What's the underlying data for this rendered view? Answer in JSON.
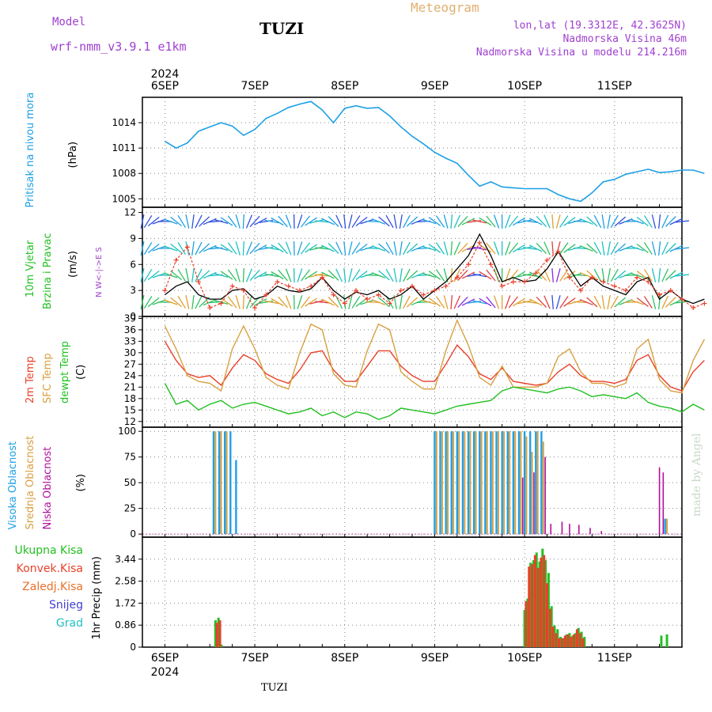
{
  "header": {
    "model_label": "Model",
    "model_name": "wrf-nmm_v3.9.1 e1km",
    "station": "TUZI",
    "meteogram": "Meteogram",
    "lonlat": "lon,lat (19.3312E, 42.3625N)",
    "elev": "Nadmorska Visina 46m",
    "elev_model": "Nadmorska Visina u modelu 214.216m",
    "credit": "made by Angel",
    "footer": "TUZI"
  },
  "colors": {
    "pressure": "#1ea0e6",
    "wind_mean": "#000000",
    "wind_gust": "#e8402a",
    "t2m": "#e8402a",
    "sfc": "#d8a040",
    "dewpt": "#22c022",
    "cloud_high": "#1ea0e6",
    "cloud_mid": "#d8a040",
    "cloud_low": "#b0109a",
    "precip_total": "#22c022",
    "precip_conv": "#e8402a",
    "precip_frz": "#e8702a",
    "precip_snow": "#4040d0",
    "precip_hail": "#22c0c0"
  },
  "chart_data": [
    {
      "type": "line",
      "title": "",
      "ylabel_lines": [
        "Pritisak na nivou mora"
      ],
      "units": "(hPa)",
      "yticks": [
        1005,
        1008,
        1011,
        1014
      ],
      "ylim": [
        1004,
        1017
      ],
      "x_dates_top": [
        "6SEP",
        "7SEP",
        "8SEP",
        "9SEP",
        "10SEP",
        "11SEP"
      ],
      "x_year_top": "2024",
      "x": [
        0,
        3,
        6,
        9,
        12,
        15,
        18,
        21,
        24,
        27,
        30,
        33,
        36,
        39,
        42,
        45,
        48,
        51,
        54,
        57,
        60,
        63,
        66,
        69,
        72,
        75,
        78,
        81,
        84,
        87,
        90,
        93,
        96,
        99,
        102,
        105,
        108,
        111,
        114,
        117,
        120,
        123,
        126,
        129,
        132,
        135,
        138,
        141,
        144
      ],
      "series": [
        {
          "name": "pressure",
          "color_key": "pressure",
          "values": [
            1011.8,
            1011.0,
            1011.6,
            1013.0,
            1013.5,
            1014.0,
            1013.6,
            1012.5,
            1013.2,
            1014.5,
            1015.1,
            1015.8,
            1016.2,
            1016.5,
            1015.5,
            1014.0,
            1015.7,
            1016.0,
            1015.7,
            1015.8,
            1014.8,
            1013.5,
            1012.4,
            1011.5,
            1010.5,
            1009.8,
            1009.2,
            1007.8,
            1006.5,
            1007.0,
            1006.4,
            1006.3,
            1006.2,
            1006.2,
            1006.2,
            1005.5,
            1005.0,
            1004.7,
            1005.7,
            1007.0,
            1007.3,
            1007.9,
            1008.2,
            1008.5,
            1008.1,
            1008.2,
            1008.4,
            1008.4,
            1008.0
          ]
        }
      ]
    },
    {
      "type": "line",
      "ylabel_lines": [
        "10m Vjetar",
        "Brzina i Pravac"
      ],
      "units": "(m/s)",
      "yticks": [
        0,
        3,
        6,
        9,
        12
      ],
      "ylim": [
        0,
        12.6
      ],
      "compass": "N  W<-|->E  S",
      "x": [
        0,
        3,
        6,
        9,
        12,
        15,
        18,
        21,
        24,
        27,
        30,
        33,
        36,
        39,
        42,
        45,
        48,
        51,
        54,
        57,
        60,
        63,
        66,
        69,
        72,
        75,
        78,
        81,
        84,
        87,
        90,
        93,
        96,
        99,
        102,
        105,
        108,
        111,
        114,
        117,
        120,
        123,
        126,
        129,
        132,
        135,
        138,
        141,
        144
      ],
      "series": [
        {
          "name": "mean",
          "color_key": "wind_mean",
          "values": [
            2.5,
            3.5,
            4.0,
            2.5,
            2.0,
            2.0,
            3.0,
            3.2,
            2.0,
            2.4,
            3.5,
            3.0,
            2.8,
            3.2,
            4.5,
            3.0,
            2.0,
            2.8,
            2.5,
            3.0,
            2.0,
            2.5,
            3.5,
            2.0,
            3.0,
            4.0,
            5.5,
            7.0,
            9.5,
            7.0,
            4.0,
            4.5,
            4.0,
            4.2,
            5.5,
            7.5,
            5.5,
            3.5,
            4.5,
            3.5,
            3.0,
            2.5,
            4.0,
            4.5,
            2.0,
            3.0,
            2.0,
            1.5,
            2.0
          ]
        },
        {
          "name": "gust",
          "color_key": "wind_gust",
          "values": [
            3.0,
            6.5,
            8.0,
            4.0,
            1.0,
            1.5,
            3.5,
            3.0,
            1.0,
            2.5,
            4.0,
            3.5,
            3.0,
            3.5,
            4.5,
            2.5,
            1.5,
            3.0,
            2.0,
            2.5,
            1.5,
            3.0,
            3.5,
            2.5,
            3.0,
            3.5,
            4.5,
            6.0,
            8.5,
            6.0,
            3.5,
            4.0,
            4.0,
            5.0,
            6.5,
            7.5,
            4.5,
            3.0,
            4.5,
            4.0,
            3.5,
            3.0,
            4.5,
            4.0,
            2.5,
            3.0,
            2.0,
            1.0,
            1.5
          ]
        }
      ]
    },
    {
      "type": "line",
      "ylabel_lines": [
        "2m Temp",
        "SFC Temp",
        "dewpt Temp"
      ],
      "units": "(C)",
      "yticks": [
        12,
        15,
        18,
        21,
        24,
        27,
        30,
        33,
        36,
        39
      ],
      "ylim": [
        10.5,
        39.5
      ],
      "x": [
        0,
        3,
        6,
        9,
        12,
        15,
        18,
        21,
        24,
        27,
        30,
        33,
        36,
        39,
        42,
        45,
        48,
        51,
        54,
        57,
        60,
        63,
        66,
        69,
        72,
        75,
        78,
        81,
        84,
        87,
        90,
        93,
        96,
        99,
        102,
        105,
        108,
        111,
        114,
        117,
        120,
        123,
        126,
        129,
        132,
        135,
        138,
        141,
        144
      ],
      "series": [
        {
          "name": "2m Temp",
          "color_key": "t2m",
          "values": [
            33.0,
            28.0,
            24.5,
            23.5,
            24.0,
            21.5,
            26.0,
            29.5,
            28.0,
            24.5,
            23.0,
            22.0,
            25.5,
            30.0,
            30.5,
            25.5,
            22.5,
            22.5,
            26.5,
            30.5,
            30.5,
            26.5,
            24.0,
            22.5,
            22.5,
            27.0,
            32.0,
            29.0,
            24.5,
            23.0,
            26.0,
            22.5,
            22.0,
            21.5,
            22.0,
            25.0,
            27.0,
            24.0,
            22.5,
            22.5,
            22.0,
            23.0,
            28.0,
            29.5,
            24.0,
            21.0,
            20.0,
            25.0,
            28.0
          ]
        },
        {
          "name": "SFC Temp",
          "color_key": "sfc",
          "values": [
            37.0,
            31.0,
            24.0,
            22.5,
            22.0,
            20.0,
            31.0,
            37.0,
            31.0,
            23.5,
            21.5,
            20.5,
            30.0,
            37.5,
            36.0,
            24.5,
            21.5,
            21.0,
            30.5,
            37.5,
            36.0,
            25.0,
            22.5,
            20.5,
            20.5,
            30.5,
            38.5,
            32.0,
            23.5,
            21.5,
            26.5,
            21.0,
            21.0,
            21.0,
            22.0,
            29.0,
            31.0,
            25.0,
            22.0,
            22.0,
            21.0,
            22.0,
            31.0,
            33.5,
            23.0,
            20.0,
            19.5,
            28.0,
            33.5
          ]
        },
        {
          "name": "dewpt Temp",
          "color_key": "dewpt",
          "values": [
            22.0,
            16.5,
            17.5,
            15.0,
            16.5,
            17.5,
            15.5,
            16.5,
            17.0,
            16.0,
            15.0,
            14.0,
            14.5,
            15.5,
            13.5,
            14.5,
            13.0,
            14.5,
            14.0,
            12.5,
            13.5,
            15.5,
            15.0,
            14.5,
            14.0,
            15.0,
            16.0,
            16.5,
            17.0,
            17.5,
            20.0,
            21.0,
            20.5,
            20.0,
            19.5,
            20.5,
            21.0,
            20.0,
            18.5,
            19.0,
            18.5,
            18.0,
            19.5,
            17.0,
            16.0,
            15.5,
            14.5,
            16.5,
            15.0
          ]
        }
      ]
    },
    {
      "type": "bar",
      "ylabel_lines": [
        "Visoka Oblacnost",
        "Srednja Oblacnost",
        "Niska Oblacnost"
      ],
      "units": "(%)",
      "yticks": [
        0,
        25,
        50,
        75,
        100
      ],
      "ylim": [
        -3,
        104
      ],
      "series": [
        {
          "name": "Visoka Oblacnost",
          "color_key": "cloud_high",
          "x": [
            13.0,
            14.5,
            16.0,
            17.5,
            19.0,
            72.0,
            73.5,
            75.0,
            76.5,
            78.0,
            79.5,
            81.0,
            82.5,
            84.0,
            85.5,
            87.0,
            88.5,
            90.0,
            91.5,
            93.0,
            94.5,
            96.0,
            97.5,
            99.0,
            100.5,
            133.5
          ],
          "values": [
            100,
            100,
            100,
            100,
            72,
            100,
            100,
            100,
            100,
            100,
            100,
            100,
            100,
            100,
            100,
            100,
            100,
            100,
            100,
            100,
            100,
            100,
            100,
            100,
            100,
            15
          ]
        },
        {
          "name": "Srednja Oblacnost",
          "color_key": "cloud_mid",
          "x": [
            13.5,
            15.0,
            16.5,
            72.5,
            74.0,
            75.5,
            77.0,
            78.5,
            80.0,
            81.5,
            83.0,
            84.5,
            86.0,
            87.5,
            89.0,
            90.5,
            92.0,
            93.5,
            95.0,
            96.5,
            98.0,
            99.5,
            101.0,
            134.0
          ],
          "values": [
            100,
            100,
            100,
            100,
            100,
            100,
            100,
            100,
            100,
            100,
            100,
            100,
            100,
            100,
            100,
            100,
            100,
            100,
            100,
            95,
            80,
            100,
            90,
            15
          ]
        },
        {
          "name": "Niska Oblacnost",
          "color_key": "cloud_low",
          "x": [
            95.5,
            98.5,
            101.5,
            103.0,
            106.0,
            108.0,
            110.5,
            113.5,
            116.5,
            132.0,
            133.0
          ],
          "values": [
            55,
            60,
            75,
            10,
            12,
            10,
            9,
            6,
            3,
            65,
            60
          ]
        }
      ]
    },
    {
      "type": "bar",
      "ylabel": "1hr Precip (mm)",
      "legend": [
        "Ukupna Kisa",
        "Konvek.Kisa",
        "Zaledj.Kisa",
        "Snijeg",
        "Grad"
      ],
      "legend_color_keys": [
        "precip_total",
        "precip_conv",
        "precip_frz",
        "precip_snow",
        "precip_hail"
      ],
      "yticks": [
        0,
        0.86,
        1.72,
        2.58,
        3.44
      ],
      "ylim": [
        0,
        4.3
      ],
      "x_dates_bottom": [
        "6SEP",
        "7SEP",
        "8SEP",
        "9SEP",
        "10SEP",
        "11SEP"
      ],
      "x_year_bottom": "2024",
      "series": [
        {
          "name": "Ukupna Kisa",
          "color_key": "precip_total",
          "x": [
            13.5,
            14.3,
            15.1,
            96.0,
            96.8,
            97.6,
            98.4,
            99.2,
            100.0,
            100.8,
            101.6,
            102.4,
            103.2,
            104.0,
            104.8,
            105.6,
            106.4,
            107.2,
            108.0,
            108.8,
            109.6,
            110.4,
            111.2,
            112.0,
            132.5,
            134.0
          ],
          "values": [
            1.05,
            1.15,
            0.1,
            1.45,
            1.9,
            3.3,
            3.4,
            3.7,
            3.35,
            3.85,
            3.4,
            2.9,
            1.6,
            0.85,
            0.7,
            0.4,
            0.35,
            0.5,
            0.55,
            0.45,
            0.55,
            0.75,
            0.6,
            0.4,
            0.45,
            0.5
          ]
        },
        {
          "name": "Konvek.Kisa",
          "color_key": "precip_conv",
          "x": [
            13.9,
            14.7,
            96.4,
            97.2,
            98.0,
            98.8,
            99.6,
            100.4,
            101.2,
            102.0,
            102.8,
            103.6,
            104.4,
            105.2,
            106.0,
            106.8,
            107.6,
            108.4,
            109.2,
            110.0,
            110.8,
            111.6
          ],
          "values": [
            0.95,
            1.05,
            1.8,
            3.15,
            3.25,
            3.6,
            3.1,
            3.5,
            3.6,
            2.5,
            1.5,
            0.8,
            0.55,
            0.35,
            0.35,
            0.45,
            0.5,
            0.4,
            0.5,
            0.7,
            0.55,
            0.35
          ]
        }
      ]
    }
  ]
}
